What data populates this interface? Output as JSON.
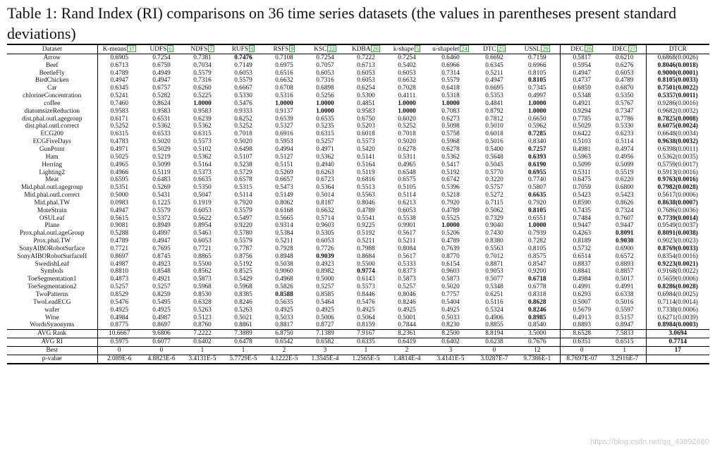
{
  "caption": "Table 1: Rand Index (RI) comparisons on 36 time series datasets (the values in parentheses present standard deviations)",
  "columns": [
    {
      "name": "Dataset",
      "ref": ""
    },
    {
      "name": "K-means",
      "ref": "37"
    },
    {
      "name": "UDFS",
      "ref": "6"
    },
    {
      "name": "NDFS",
      "ref": "7"
    },
    {
      "name": "RUFS",
      "ref": "8"
    },
    {
      "name": "RSFS",
      "ref": "9"
    },
    {
      "name": "KSC",
      "ref": "22"
    },
    {
      "name": "KDBA",
      "ref": "20"
    },
    {
      "name": "k-shape",
      "ref": "5"
    },
    {
      "name": "u-shapelet",
      "ref": "24"
    },
    {
      "name": "DTC",
      "ref": "25"
    },
    {
      "name": "USSL",
      "ref": "29"
    },
    {
      "name": "DEC",
      "ref": "26"
    },
    {
      "name": "IDEC",
      "ref": "27"
    },
    {
      "name": "DTCR",
      "ref": ""
    }
  ],
  "rows": [
    {
      "name": "Arrow",
      "values": [
        "0.6905",
        "0.7254",
        "0.7381",
        "0.7476",
        "0.7108",
        "0.7254",
        "0.7222",
        "0.7254",
        "0.6460",
        "0.6692",
        "0.7159",
        "0.5817",
        "0.6210",
        "0.6868(0.0026)"
      ],
      "bold": [
        3
      ]
    },
    {
      "name": "Beef",
      "values": [
        "0.6713",
        "0.6759",
        "0.7034",
        "0.7149",
        "0.6975",
        "0.7057",
        "0.6713",
        "0.5402",
        "0.6966",
        "0.6345",
        "0.6966",
        "0.5954",
        "0.6276",
        "0.8046(0.0018)"
      ],
      "bold": [
        13
      ]
    },
    {
      "name": "BeetleFly",
      "values": [
        "0.4789",
        "0.4949",
        "0.5579",
        "0.6053",
        "0.6516",
        "0.6053",
        "0.6053",
        "0.6053",
        "0.7314",
        "0.5211",
        "0.8105",
        "0.4947",
        "0.6053",
        "0.9000(0.0001)"
      ],
      "bold": [
        13
      ]
    },
    {
      "name": "BirdChicken",
      "values": [
        "0.4947",
        "0.4947",
        "0.7316",
        "0.5579",
        "0.6632",
        "0.7316",
        "0.6053",
        "0.6632",
        "0.5579",
        "0.4947",
        "0.8105",
        "0.4737",
        "0.4789",
        "0.8105(0.0033)"
      ],
      "bold": [
        10,
        13
      ]
    },
    {
      "name": "Car",
      "values": [
        "0.6345",
        "0.6757",
        "0.6260",
        "0.6667",
        "0.6708",
        "0.6898",
        "0.6254",
        "0.7028",
        "0.6418",
        "0.6695",
        "0.7345",
        "0.6859",
        "0.6870",
        "0.7501(0.0022)"
      ],
      "bold": [
        13
      ]
    },
    {
      "name": "chlorineConcentration",
      "values": [
        "0.5241",
        "0.5282",
        "0.5225",
        "0.5330",
        "0.5316",
        "0.5256",
        "0.5300",
        "0.4111",
        "0.5318",
        "0.5353",
        "0.4997",
        "0.5348",
        "0.5350",
        "0.5357(0.0011)"
      ],
      "bold": [
        13
      ]
    },
    {
      "name": "coffee",
      "values": [
        "0.7460",
        "0.8624",
        "1.0000",
        "0.5476",
        "1.0000",
        "1.0000",
        "0.4851",
        "1.0000",
        "1.0000",
        "0.4841",
        "1.0000",
        "0.4921",
        "0.5767",
        "0.9286(0.0016)"
      ],
      "bold": [
        2,
        4,
        5,
        7,
        8,
        10
      ]
    },
    {
      "name": "diatomsizeReduction",
      "values": [
        "0.9583",
        "0.9583",
        "0.9583",
        "0.9333",
        "0.9137",
        "1.0000",
        "0.9583",
        "1.0000",
        "0.7083",
        "0.8792",
        "1.0000",
        "0.9294",
        "0.7347",
        "0.9682(0.0032)"
      ],
      "bold": [
        5,
        7,
        10
      ]
    },
    {
      "name": "dist.phal.outl.agegroup",
      "values": [
        "0.6171",
        "0.6531",
        "0.6239",
        "0.6252",
        "0.6539",
        "0.6535",
        "0.6750",
        "0.6020",
        "0.6273",
        "0.7812",
        "0.6650",
        "0.7785",
        "0.7786",
        "0.7825(0.0008)"
      ],
      "bold": [
        13
      ]
    },
    {
      "name": "dist.phal.outl.correct",
      "values": [
        "0.5252",
        "0.5362",
        "0.5362",
        "0.5252",
        "0.5327",
        "0.5235",
        "0.5203",
        "0.5252",
        "0.5098",
        "0.5010",
        "0.5962",
        "0.5029",
        "0.5330",
        "0.6075(0.0024)"
      ],
      "bold": [
        13
      ]
    },
    {
      "name": "ECG200",
      "values": [
        "0.6315",
        "0.6533",
        "0.6315",
        "0.7018",
        "0.6916",
        "0.6315",
        "0.6018",
        "0.7018",
        "0.5758",
        "0.6018",
        "0.7285",
        "0.6422",
        "0.6233",
        "0.6648(0.0034)"
      ],
      "bold": [
        10
      ]
    },
    {
      "name": "ECGFiveDays",
      "values": [
        "0.4783",
        "0.5020",
        "0.5573",
        "0.5020",
        "0.5953",
        "0.5257",
        "0.5573",
        "0.5020",
        "0.5968",
        "0.5016",
        "0.8340",
        "0.5103",
        "0.5114",
        "0.9638(0.0032)"
      ],
      "bold": [
        13
      ]
    },
    {
      "name": "GunPoint",
      "values": [
        "0.4971",
        "0.5029",
        "0.5102",
        "0.6498",
        "0.4994",
        "0.4971",
        "0.5420",
        "0.6278",
        "0.6278",
        "0.5400",
        "0.7257",
        "0.4981",
        "0.4974",
        "0.6398(0.0011)"
      ],
      "bold": [
        10
      ]
    },
    {
      "name": "Ham",
      "values": [
        "0.5025",
        "0.5219",
        "0.5362",
        "0.5107",
        "0.5127",
        "0.5362",
        "0.5141",
        "0.5311",
        "0.5362",
        "0.5648",
        "0.6393",
        "0.5963",
        "0.4956",
        "0.5362(0.0035)"
      ],
      "bold": [
        10
      ]
    },
    {
      "name": "Herring",
      "values": [
        "0.4965",
        "0.5099",
        "0.5164",
        "0.5238",
        "0.5151",
        "0.4940",
        "0.5164",
        "0.4965",
        "0.5417",
        "0.5045",
        "0.6190",
        "0.5099",
        "0.5099",
        "0.5759(0.0017)"
      ],
      "bold": [
        10
      ]
    },
    {
      "name": "Lighting2",
      "values": [
        "0.4966",
        "0.5119",
        "0.5373",
        "0.5729",
        "0.5269",
        "0.6263",
        "0.5119",
        "0.6548",
        "0.5192",
        "0.5770",
        "0.6955",
        "0.5311",
        "0.5519",
        "0.5913(0.0016)"
      ],
      "bold": [
        10
      ]
    },
    {
      "name": "Meat",
      "values": [
        "0.6595",
        "0.6483",
        "0.6635",
        "0.6578",
        "0.6657",
        "0.6723",
        "0.6816",
        "0.6575",
        "0.6742",
        "0.3220",
        "0.7740",
        "0.6475",
        "0.6220",
        "0.9763(0.0016)"
      ],
      "bold": [
        13
      ]
    },
    {
      "name": "Mid.phal.outl.agegroup",
      "values": [
        "0.5351",
        "0.5269",
        "0.5350",
        "0.5315",
        "0.5473",
        "0.5364",
        "0.5513",
        "0.5105",
        "0.5396",
        "0.5757",
        "0.5807",
        "0.7059",
        "0.6800",
        "0.7982(0.0028)"
      ],
      "bold": [
        13
      ]
    },
    {
      "name": "Mid.phal.outl.correct",
      "values": [
        "0.5000",
        "0.5431",
        "0.5047",
        "0.5114",
        "0.5149",
        "0.5014",
        "0.5563",
        "0.5114",
        "0.5218",
        "0.5272",
        "0.6635",
        "0.5423",
        "0.5423",
        "0.5617(0.0006)"
      ],
      "bold": [
        10
      ]
    },
    {
      "name": "Mid.phal.TW",
      "values": [
        "0.0983",
        "0.1225",
        "0.1919",
        "0.7920",
        "0.8062",
        "0.8187",
        "0.8046",
        "0.6213",
        "0.7920",
        "0.7115",
        "0.7920",
        "0.8590",
        "0.8626",
        "0.8638(0.0007)"
      ],
      "bold": [
        13
      ]
    },
    {
      "name": "MoteStrain",
      "values": [
        "0.4947",
        "0.5579",
        "0.6053",
        "0.5579",
        "0.6168",
        "0.6632",
        "0.4789",
        "0.6053",
        "0.4789",
        "0.5062",
        "0.8105",
        "0.7435",
        "0.7324",
        "0.7686(0.0036)"
      ],
      "bold": [
        10
      ]
    },
    {
      "name": "OSULeaf",
      "values": [
        "0.5615",
        "0.5372",
        "0.5622",
        "0.5497",
        "0.5665",
        "0.5714",
        "0.5541",
        "0.5538",
        "0.5525",
        "0.7329",
        "0.6551",
        "0.7484",
        "0.7607",
        "0.7739(0.0014)"
      ],
      "bold": [
        13
      ]
    },
    {
      "name": "Plane",
      "values": [
        "0.9081",
        "0.8949",
        "0.8954",
        "0.9220",
        "0.9314",
        "0.9603",
        "0.9225",
        "0.9901",
        "1.0000",
        "0.9040",
        "1.0000",
        "0.9447",
        "0.9447",
        "0.9549(0.0037)"
      ],
      "bold": [
        8,
        10
      ]
    },
    {
      "name": "Prox.phal.outl.ageGroup",
      "values": [
        "0.5288",
        "0.4997",
        "0.5463",
        "0.5780",
        "0.5384",
        "0.5305",
        "0.5192",
        "0.5617",
        "0.5206",
        "0.7430",
        "0.7939",
        "0.4263",
        "0.8091",
        "0.8091(0.0038)"
      ],
      "bold": [
        12,
        13
      ]
    },
    {
      "name": "Prox.phal.TW",
      "values": [
        "0.4789",
        "0.4947",
        "0.6053",
        "0.5579",
        "0.5211",
        "0.6053",
        "0.5211",
        "0.5211",
        "0.4789",
        "0.8380",
        "0.7282",
        "0.8189",
        "0.9030",
        "0.9023(0.0023)"
      ],
      "bold": [
        12
      ]
    },
    {
      "name": "SonyAIBORobotSurface",
      "values": [
        "0.7721",
        "0.7695",
        "0.7721",
        "0.7787",
        "0.7928",
        "0.7726",
        "0.7988",
        "0.8084",
        "0.7639",
        "0.5563",
        "0.8105",
        "0.5732",
        "0.6900",
        "0.8769(0.0033)"
      ],
      "bold": [
        13
      ]
    },
    {
      "name": "SonyAIBORobotSurfaceII",
      "values": [
        "0.8697",
        "0.8745",
        "0.8865",
        "0.8756",
        "0.8948",
        "0.9039",
        "0.8684",
        "0.5617",
        "0.8770",
        "0.7012",
        "0.8575",
        "0.6514",
        "0.6572",
        "0.8354(0.0016)"
      ],
      "bold": [
        5
      ]
    },
    {
      "name": "SwedishLeaf",
      "values": [
        "0.4987",
        "0.4923",
        "0.5500",
        "0.5192",
        "0.5038",
        "0.4923",
        "0.5500",
        "0.5333",
        "0.6154",
        "0.8871",
        "0.8547",
        "0.8837",
        "0.8893",
        "0.9223(0.0021)"
      ],
      "bold": [
        13
      ]
    },
    {
      "name": "Symbols",
      "values": [
        "0.8810",
        "0.8548",
        "0.8562",
        "0.8525",
        "0.9060",
        "0.8982",
        "0.9774",
        "0.8373",
        "0.9603",
        "0.9053",
        "0.9200",
        "0.8841",
        "0.8857",
        "0.9168(0.0022)"
      ],
      "bold": [
        6
      ]
    },
    {
      "name": "ToeSegmentation1",
      "values": [
        "0.4873",
        "0.4921",
        "0.5873",
        "0.5429",
        "0.4968",
        "0.5000",
        "0.6143",
        "0.5873",
        "0.5873",
        "0.5077",
        "0.6718",
        "0.4984",
        "0.5017",
        "0.5659(0.0006)"
      ],
      "bold": [
        10
      ]
    },
    {
      "name": "ToeSegmentation2",
      "values": [
        "0.5257",
        "0.5257",
        "0.5968",
        "0.5968",
        "0.5826",
        "0.5257",
        "0.5573",
        "0.5257",
        "0.5020",
        "0.5348",
        "0.6778",
        "0.4991",
        "0.4991",
        "0.8286(0.0028)"
      ],
      "bold": [
        13
      ]
    },
    {
      "name": "TwoPatterns",
      "values": [
        "0.8529",
        "0.8259",
        "0.8530",
        "0.8385",
        "0.8588",
        "0.8585",
        "0.8446",
        "0.8046",
        "0.7757",
        "0.6251",
        "0.8318",
        "0.6293",
        "0.6338",
        "0.6984(0.0025)"
      ],
      "bold": [
        4
      ]
    },
    {
      "name": "TwoLeadECG",
      "values": [
        "0.5476",
        "0.5495",
        "0.6328",
        "0.8246",
        "0.5635",
        "0.5464",
        "0.5476",
        "0.8246",
        "0.5404",
        "0.5116",
        "0.8628",
        "0.5007",
        "0.5016",
        "0.7114(0.0014)"
      ],
      "bold": [
        10
      ]
    },
    {
      "name": "wafer",
      "values": [
        "0.4925",
        "0.4925",
        "0.5263",
        "0.5263",
        "0.4925",
        "0.4925",
        "0.4925",
        "0.4925",
        "0.4925",
        "0.5324",
        "0.8246",
        "0.5679",
        "0.5597",
        "0.7338(0.0006)"
      ],
      "bold": [
        10
      ]
    },
    {
      "name": "Wine",
      "values": [
        "0.4984",
        "0.4987",
        "0.5123",
        "0.5021",
        "0.5033",
        "0.5006",
        "0.5064",
        "0.5001",
        "0.5033",
        "0.4906",
        "0.8985",
        "0.4913",
        "0.5157",
        "0.6271(0.0039)"
      ],
      "bold": [
        10
      ]
    },
    {
      "name": "WordsSynonyms",
      "values": [
        "0.8775",
        "0.8697",
        "0.8760",
        "0.8861",
        "0.8817",
        "0.8727",
        "0.8159",
        "0.7844",
        "0.8230",
        "0.8855",
        "0.8540",
        "0.8893",
        "0.8947",
        "0.8984(0.0003)"
      ],
      "bold": [
        13
      ]
    }
  ],
  "summary": [
    {
      "name": "AVG Rank",
      "values": [
        "10.6667",
        "9.6806",
        "7.2222",
        "7.3889",
        "6.8750",
        "7.1389",
        "7.9167",
        "8.2361",
        "8.2500",
        "8.8194",
        "3.5000",
        "8.6528",
        "7.5833",
        "3.0694"
      ],
      "bold": [
        13
      ]
    },
    {
      "name": "AVG RI",
      "values": [
        "0.5975",
        "0.6077",
        "0.6402",
        "0.6478",
        "0.6542",
        "0.6582",
        "0.6335",
        "0.6419",
        "0.6402",
        "0.6238",
        "0.7676",
        "0.6351",
        "0.6515",
        "0.7714"
      ],
      "bold": [
        13
      ]
    },
    {
      "name": "Best",
      "values": [
        "0",
        "0",
        "1",
        "1",
        "2",
        "3",
        "1",
        "2",
        "3",
        "0",
        "12",
        "0",
        "1",
        "17"
      ],
      "bold": [
        13
      ]
    },
    {
      "name": "p-value",
      "values": [
        "2.089E-6",
        "4.8823E-6",
        "3.4131E-5",
        "5.7729E-5",
        "4.1222E-5",
        "1.3545E-4",
        "1.2565E-5",
        "1.4814E-4",
        "3.4141E-5",
        "3.0287E-7",
        "9.7386E-1",
        "8.7697E-07",
        "3.2916E-7",
        ""
      ],
      "bold": []
    }
  ],
  "watermark": "https://blog.csdn.net/qq_43892660"
}
